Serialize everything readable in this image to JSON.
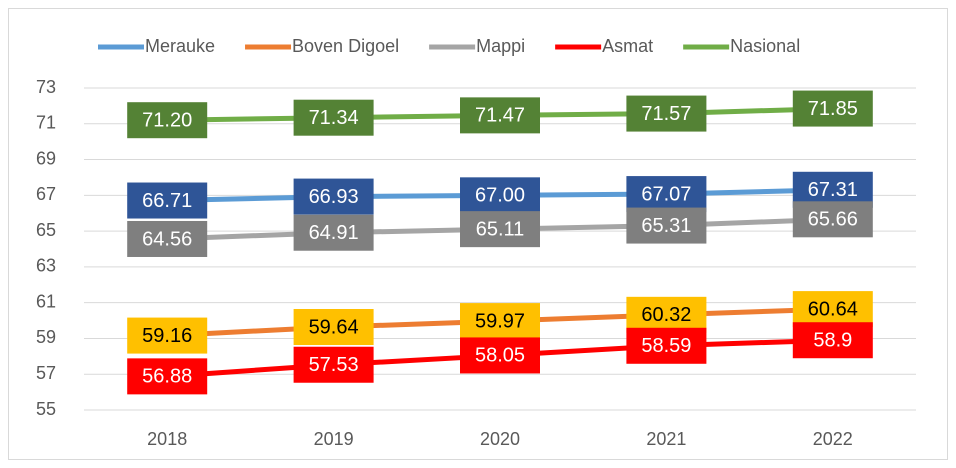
{
  "chart_data": {
    "type": "line",
    "categories": [
      "2018",
      "2019",
      "2020",
      "2021",
      "2022"
    ],
    "series": [
      {
        "name": "Merauke",
        "color": "#5b9bd5",
        "label_box": "#2f5597",
        "label_text": "#ffffff",
        "values": [
          66.71,
          66.93,
          67.0,
          67.07,
          67.31
        ],
        "value_labels": [
          "66.71",
          "66.93",
          "67.00",
          "67.07",
          "67.31"
        ]
      },
      {
        "name": "Boven Digoel",
        "color": "#ed7d31",
        "label_box": "#ffc000",
        "label_text": "#000000",
        "values": [
          59.16,
          59.64,
          59.97,
          60.32,
          60.64
        ],
        "value_labels": [
          "59.16",
          "59.64",
          "59.97",
          "60.32",
          "60.64"
        ]
      },
      {
        "name": "Mappi",
        "color": "#a5a5a5",
        "label_box": "#7f7f7f",
        "label_text": "#ffffff",
        "values": [
          64.56,
          64.91,
          65.11,
          65.31,
          65.66
        ],
        "value_labels": [
          "64.56",
          "64.91",
          "65.11",
          "65.31",
          "65.66"
        ]
      },
      {
        "name": "Asmat",
        "color": "#ff0000",
        "label_box": "#ff0000",
        "label_text": "#ffffff",
        "values": [
          56.88,
          57.53,
          58.05,
          58.59,
          58.9
        ],
        "value_labels": [
          "56.88",
          "57.53",
          "58.05",
          "58.59",
          "58.9"
        ]
      },
      {
        "name": "Nasional",
        "color": "#70ad47",
        "label_box": "#548235",
        "label_text": "#ffffff",
        "values": [
          71.2,
          71.34,
          71.47,
          71.57,
          71.85
        ],
        "value_labels": [
          "71.20",
          "71.34",
          "71.47",
          "71.57",
          "71.85"
        ]
      }
    ],
    "ylim": [
      55,
      73
    ],
    "yticks": [
      55,
      57,
      59,
      61,
      63,
      65,
      67,
      69,
      71,
      73
    ],
    "grid": true,
    "legend": "top"
  }
}
